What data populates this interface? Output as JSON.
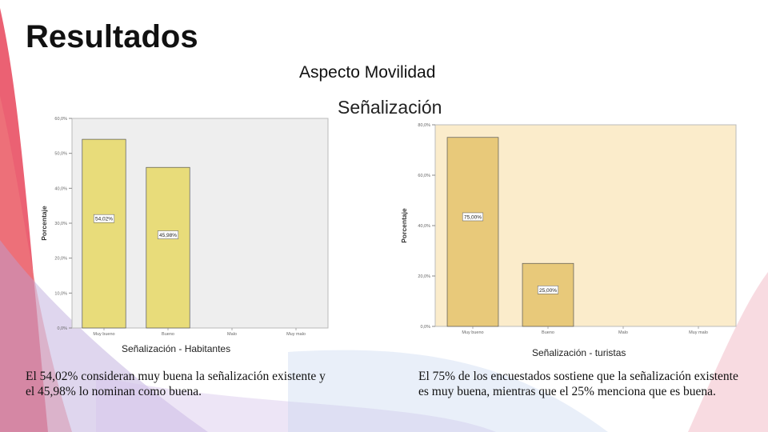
{
  "slide": {
    "title": "Resultados",
    "subtitle": "Aspecto Movilidad",
    "section": "Señalización"
  },
  "chart_data": [
    {
      "type": "bar",
      "ylabel": "Porcentaje",
      "xlabel": "Señalización - Habitantes",
      "categories": [
        "Muy bueno",
        "Bueno",
        "Malo",
        "Muy malo"
      ],
      "values": [
        54.02,
        45.98,
        0,
        0
      ],
      "value_labels": [
        "54,02%",
        "45,98%",
        "",
        ""
      ],
      "yticks": [
        "0,0%",
        "10,0%",
        "20,0%",
        "30,0%",
        "40,0%",
        "50,0%",
        "60,0%"
      ],
      "ylim": [
        0,
        60
      ],
      "bar_color": "#e8dc7a",
      "background": "#eeeeee"
    },
    {
      "type": "bar",
      "ylabel": "Porcentaje",
      "xlabel": "Señalización - turistas",
      "categories": [
        "Muy bueno",
        "Bueno",
        "Malo",
        "Muy malo"
      ],
      "values": [
        75,
        25,
        0,
        0
      ],
      "value_labels": [
        "75,00%",
        "25,00%",
        "",
        ""
      ],
      "yticks": [
        "0,0%",
        "20,0%",
        "40,0%",
        "60,0%",
        "80,0%"
      ],
      "ylim": [
        0,
        80
      ],
      "bar_color": "#e8c97a",
      "background": "#fbeccb"
    }
  ],
  "text": {
    "left": "El 54,02% consideran muy buena la señalización existente y el 45,98% lo nominan como buena.",
    "right": "El 75% de los encuestados sostiene que la señalización existente es muy buena, mientras que el 25% menciona que es buena."
  }
}
